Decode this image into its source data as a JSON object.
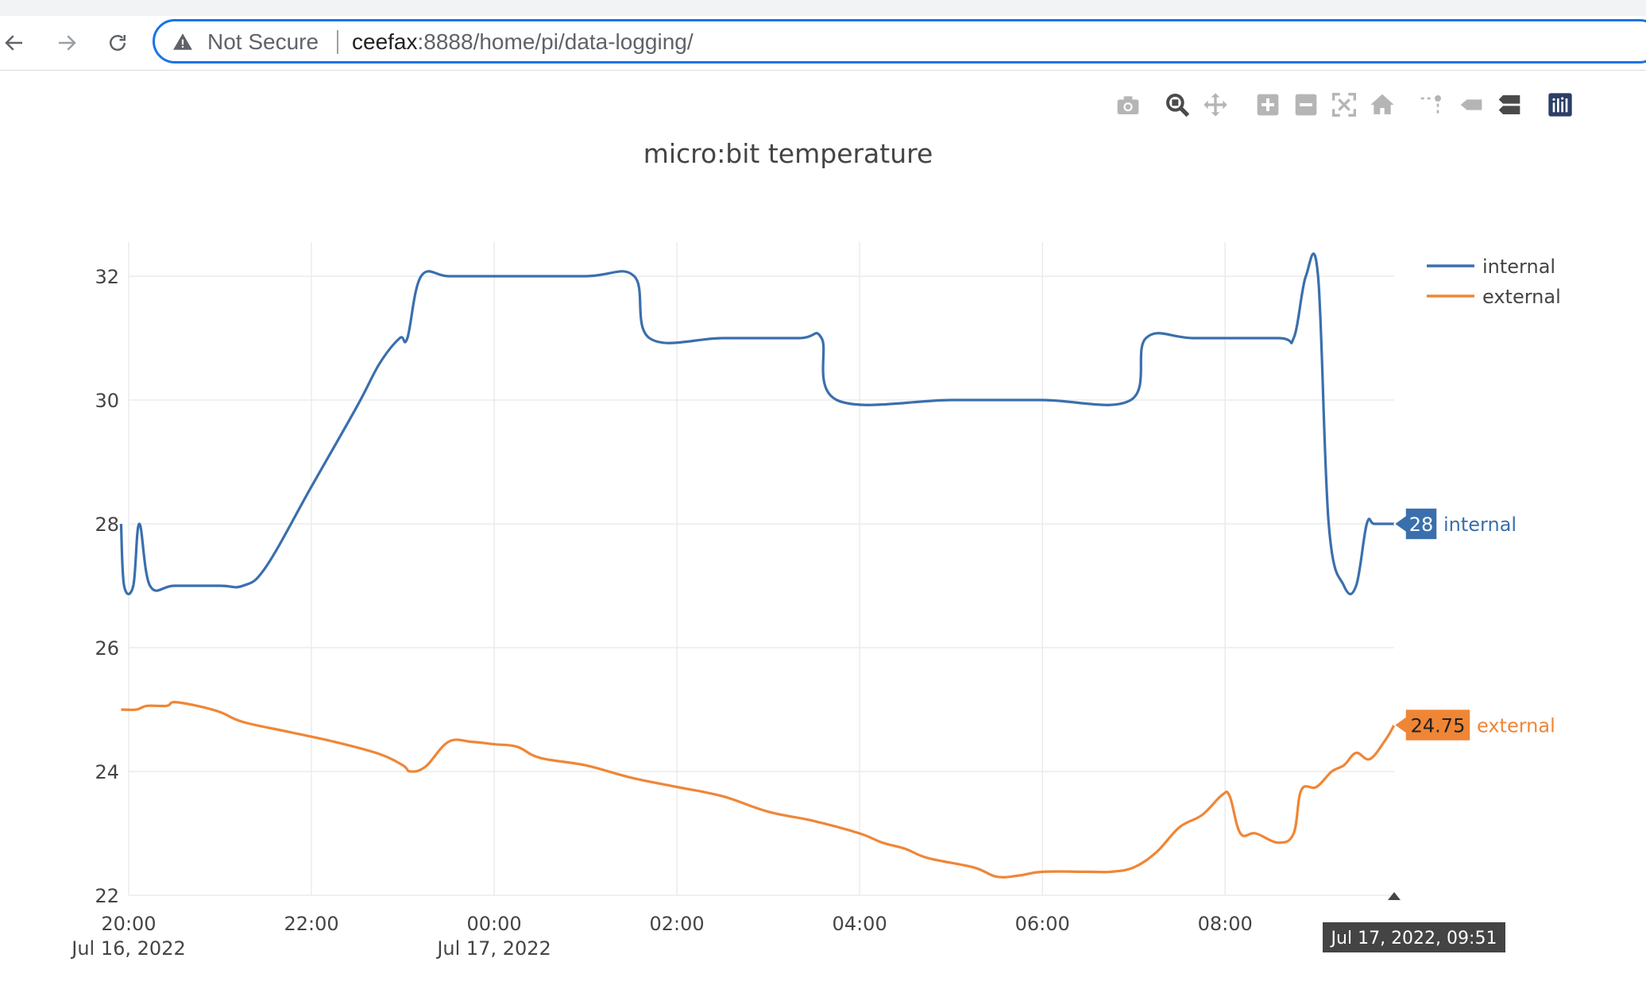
{
  "browser": {
    "security_label": "Not Secure",
    "url_host": "ceefax",
    "url_rest": ":8888/home/pi/data-logging/"
  },
  "modebar": {
    "icons": [
      "camera-icon",
      "zoom-icon",
      "pan-icon",
      "zoom-in-icon",
      "zoom-out-icon",
      "autoscale-icon",
      "reset-axes-icon",
      "spike-lines-icon",
      "hover-closest-icon",
      "hover-compare-icon",
      "plotly-logo-icon"
    ]
  },
  "chart_data": {
    "type": "line",
    "title": "micro:bit temperature",
    "xlabel": "",
    "ylabel": "",
    "x_range": [
      "2022-07-16 20:00",
      "2022-07-17 09:51"
    ],
    "ylim": [
      22,
      32.5
    ],
    "y_ticks": [
      "22",
      "24",
      "26",
      "28",
      "30",
      "32"
    ],
    "x_ticks": [
      {
        "t": "2022-07-16 20:00",
        "label": "20:00",
        "sub": "Jul 16, 2022"
      },
      {
        "t": "2022-07-16 22:00",
        "label": "22:00",
        "sub": ""
      },
      {
        "t": "2022-07-17 00:00",
        "label": "00:00",
        "sub": "Jul 17, 2022"
      },
      {
        "t": "2022-07-17 02:00",
        "label": "02:00",
        "sub": ""
      },
      {
        "t": "2022-07-17 04:00",
        "label": "04:00",
        "sub": ""
      },
      {
        "t": "2022-07-17 06:00",
        "label": "06:00",
        "sub": ""
      },
      {
        "t": "2022-07-17 08:00",
        "label": "08:00",
        "sub": ""
      }
    ],
    "grid": true,
    "legend": "top-right",
    "hover_x_label": "Jul 17, 2022, 09:51",
    "series": [
      {
        "name": "internal",
        "color": "#3a6fad",
        "hover_value": "28",
        "points": [
          [
            "2022-07-16 19:55",
            28.0
          ],
          [
            "2022-07-16 19:57",
            27.0
          ],
          [
            "2022-07-16 20:03",
            27.0
          ],
          [
            "2022-07-16 20:07",
            28.0
          ],
          [
            "2022-07-16 20:14",
            27.0
          ],
          [
            "2022-07-16 20:30",
            27.0
          ],
          [
            "2022-07-16 21:00",
            27.0
          ],
          [
            "2022-07-16 21:15",
            27.0
          ],
          [
            "2022-07-16 21:30",
            27.3
          ],
          [
            "2022-07-16 22:00",
            28.6
          ],
          [
            "2022-07-16 22:30",
            29.9
          ],
          [
            "2022-07-16 22:45",
            30.6
          ],
          [
            "2022-07-16 22:58",
            31.0
          ],
          [
            "2022-07-16 23:03",
            31.0
          ],
          [
            "2022-07-16 23:12",
            32.0
          ],
          [
            "2022-07-16 23:30",
            32.0
          ],
          [
            "2022-07-17 00:00",
            32.0
          ],
          [
            "2022-07-17 01:00",
            32.0
          ],
          [
            "2022-07-17 01:32",
            32.0
          ],
          [
            "2022-07-17 01:42",
            31.0
          ],
          [
            "2022-07-17 02:30",
            31.0
          ],
          [
            "2022-07-17 03:20",
            31.0
          ],
          [
            "2022-07-17 03:35",
            31.0
          ],
          [
            "2022-07-17 03:45",
            30.0
          ],
          [
            "2022-07-17 05:00",
            30.0
          ],
          [
            "2022-07-17 06:00",
            30.0
          ],
          [
            "2022-07-17 06:58",
            30.0
          ],
          [
            "2022-07-17 07:08",
            31.0
          ],
          [
            "2022-07-17 07:40",
            31.0
          ],
          [
            "2022-07-17 08:35",
            31.0
          ],
          [
            "2022-07-17 08:45",
            31.0
          ],
          [
            "2022-07-17 08:53",
            32.0
          ],
          [
            "2022-07-17 09:01",
            32.0
          ],
          [
            "2022-07-17 09:08",
            28.0
          ],
          [
            "2022-07-17 09:18",
            27.0
          ],
          [
            "2022-07-17 09:26",
            27.0
          ],
          [
            "2022-07-17 09:33",
            28.0
          ],
          [
            "2022-07-17 09:38",
            28.0
          ],
          [
            "2022-07-17 09:51",
            28.0
          ]
        ]
      },
      {
        "name": "external",
        "color": "#ef8636",
        "hover_value": "24.75",
        "points": [
          [
            "2022-07-16 19:55",
            25.0
          ],
          [
            "2022-07-16 20:05",
            25.0
          ],
          [
            "2022-07-16 20:12",
            25.06
          ],
          [
            "2022-07-16 20:25",
            25.06
          ],
          [
            "2022-07-16 20:30",
            25.12
          ],
          [
            "2022-07-16 20:45",
            25.06
          ],
          [
            "2022-07-16 21:00",
            24.96
          ],
          [
            "2022-07-16 21:15",
            24.8
          ],
          [
            "2022-07-16 21:45",
            24.64
          ],
          [
            "2022-07-16 22:15",
            24.48
          ],
          [
            "2022-07-16 22:45",
            24.28
          ],
          [
            "2022-07-16 23:00",
            24.1
          ],
          [
            "2022-07-16 23:05",
            24.0
          ],
          [
            "2022-07-16 23:15",
            24.08
          ],
          [
            "2022-07-16 23:30",
            24.48
          ],
          [
            "2022-07-16 23:45",
            24.48
          ],
          [
            "2022-07-17 00:00",
            24.44
          ],
          [
            "2022-07-17 00:15",
            24.4
          ],
          [
            "2022-07-17 00:30",
            24.22
          ],
          [
            "2022-07-17 01:00",
            24.1
          ],
          [
            "2022-07-17 01:30",
            23.9
          ],
          [
            "2022-07-17 02:00",
            23.75
          ],
          [
            "2022-07-17 02:30",
            23.6
          ],
          [
            "2022-07-17 03:00",
            23.35
          ],
          [
            "2022-07-17 03:30",
            23.2
          ],
          [
            "2022-07-17 04:00",
            23.0
          ],
          [
            "2022-07-17 04:15",
            22.85
          ],
          [
            "2022-07-17 04:30",
            22.75
          ],
          [
            "2022-07-17 04:45",
            22.6
          ],
          [
            "2022-07-17 05:15",
            22.45
          ],
          [
            "2022-07-17 05:30",
            22.3
          ],
          [
            "2022-07-17 05:45",
            22.32
          ],
          [
            "2022-07-17 06:00",
            22.38
          ],
          [
            "2022-07-17 06:30",
            22.38
          ],
          [
            "2022-07-17 06:45",
            22.38
          ],
          [
            "2022-07-17 07:00",
            22.45
          ],
          [
            "2022-07-17 07:15",
            22.7
          ],
          [
            "2022-07-17 07:30",
            23.1
          ],
          [
            "2022-07-17 07:45",
            23.3
          ],
          [
            "2022-07-17 07:58",
            23.62
          ],
          [
            "2022-07-17 08:03",
            23.6
          ],
          [
            "2022-07-17 08:10",
            23.0
          ],
          [
            "2022-07-17 08:20",
            23.0
          ],
          [
            "2022-07-17 08:35",
            22.85
          ],
          [
            "2022-07-17 08:45",
            23.0
          ],
          [
            "2022-07-17 08:50",
            23.7
          ],
          [
            "2022-07-17 09:00",
            23.75
          ],
          [
            "2022-07-17 09:10",
            24.0
          ],
          [
            "2022-07-17 09:18",
            24.1
          ],
          [
            "2022-07-17 09:26",
            24.3
          ],
          [
            "2022-07-17 09:35",
            24.2
          ],
          [
            "2022-07-17 09:45",
            24.5
          ],
          [
            "2022-07-17 09:51",
            24.75
          ]
        ]
      }
    ]
  }
}
